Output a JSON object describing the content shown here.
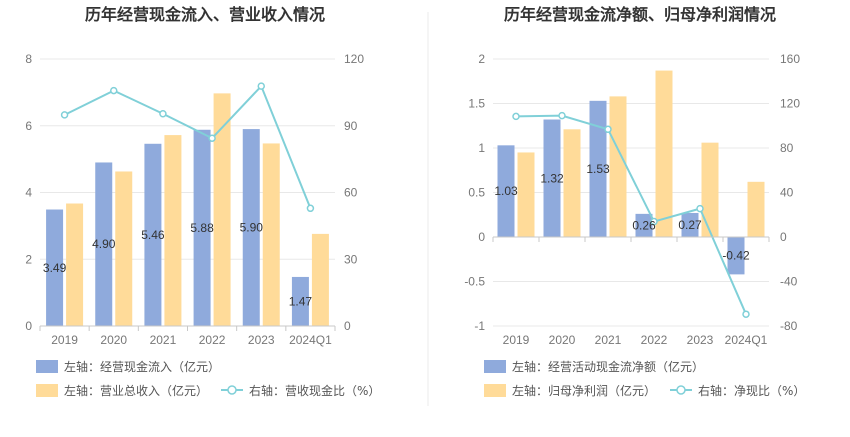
{
  "charts": [
    {
      "title": "历年经营现金流入、营业收入情况",
      "type": "bar",
      "categories": [
        "2019",
        "2020",
        "2021",
        "2022",
        "2023",
        "2024Q1"
      ],
      "left_axis": {
        "ylim": [
          0,
          8
        ],
        "ticks": [
          0,
          2,
          4,
          6,
          8
        ]
      },
      "right_axis": {
        "ylim": [
          0,
          120
        ],
        "ticks": [
          0,
          30,
          60,
          90,
          120
        ]
      },
      "series": [
        {
          "name": "左轴：经营现金流入（亿元）",
          "kind": "bar",
          "axis": "left",
          "color": "#8FAADC",
          "values": [
            3.49,
            4.9,
            5.46,
            5.88,
            5.9,
            1.47
          ],
          "show_labels": true,
          "labels": [
            "3.49",
            "4.90",
            "5.46",
            "5.88",
            "5.90",
            "1.47"
          ]
        },
        {
          "name": "左轴：营业总收入（亿元）",
          "kind": "bar",
          "axis": "left",
          "color": "#FFDB99",
          "values": [
            3.67,
            4.63,
            5.72,
            6.97,
            5.47,
            2.76
          ],
          "show_labels": false
        },
        {
          "name": "右轴：营收现金比（%）",
          "kind": "line",
          "axis": "right",
          "color": "#80D0D8",
          "values": [
            94.9,
            105.8,
            95.4,
            84.4,
            107.8,
            52.9
          ]
        }
      ]
    },
    {
      "title": "历年经营现金流净额、归母净利润情况",
      "type": "bar",
      "categories": [
        "2019",
        "2020",
        "2021",
        "2022",
        "2023",
        "2024Q1"
      ],
      "left_axis": {
        "ylim": [
          -1,
          2
        ],
        "ticks": [
          -1,
          -0.5,
          0,
          0.5,
          1,
          1.5,
          2
        ],
        "tick_labels": [
          "-1",
          "-0.5",
          "0",
          "0.5",
          "1",
          "1.5",
          "2"
        ]
      },
      "right_axis": {
        "ylim": [
          -80,
          160
        ],
        "ticks": [
          -80,
          -40,
          0,
          40,
          80,
          120,
          160
        ]
      },
      "series": [
        {
          "name": "左轴：经营活动现金流净额（亿元）",
          "kind": "bar",
          "axis": "left",
          "color": "#8FAADC",
          "values": [
            1.03,
            1.32,
            1.53,
            0.26,
            0.27,
            -0.42
          ],
          "show_labels": true,
          "labels": [
            "1.03",
            "1.32",
            "1.53",
            "0.26",
            "0.27",
            "-0.42"
          ]
        },
        {
          "name": "左轴：归母净利润（亿元）",
          "kind": "bar",
          "axis": "left",
          "color": "#FFDB99",
          "values": [
            0.95,
            1.21,
            1.58,
            1.87,
            1.06,
            0.62
          ],
          "show_labels": false
        },
        {
          "name": "右轴：净现比（%）",
          "kind": "line",
          "axis": "right",
          "color": "#80D0D8",
          "values": [
            108.4,
            109.1,
            96.8,
            13.9,
            25.5,
            -69.4
          ]
        }
      ]
    }
  ]
}
